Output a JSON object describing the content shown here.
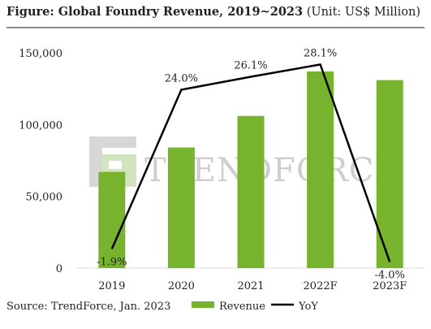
{
  "header": {
    "title_bold": "Figure: Global Foundry Revenue, 2019~2023",
    "title_unit": " (Unit: US$ Million)"
  },
  "watermark": {
    "text": "TRENDFORCE"
  },
  "footer": {
    "source": "Source: TrendForce, Jan. 2023"
  },
  "colors": {
    "bar": "#77b32c",
    "line": "#000000",
    "grid": "#d9d9d9"
  },
  "chart_data": {
    "type": "bar",
    "categories": [
      "2019",
      "2020",
      "2021",
      "2022F",
      "2023F"
    ],
    "series": [
      {
        "name": "Revenue",
        "type": "bar",
        "values": [
          67000,
          84000,
          106000,
          137000,
          131000
        ]
      },
      {
        "name": "YoY",
        "type": "line",
        "values": [
          -1.9,
          24.0,
          26.1,
          28.1,
          -4.0
        ],
        "labels": [
          "-1.9%",
          "24.0%",
          "26.1%",
          "28.1%",
          "-4.0%"
        ]
      }
    ],
    "y_ticks": [
      "0",
      "50,000",
      "100,000",
      "150,000"
    ],
    "ylim": [
      0,
      150000
    ],
    "yoy_range": [
      -5,
      30
    ],
    "legend": "bottom"
  }
}
